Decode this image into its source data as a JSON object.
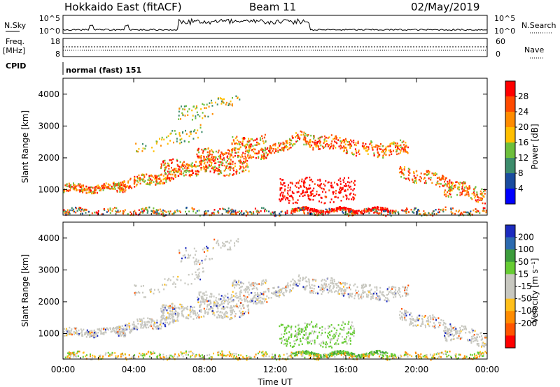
{
  "header": {
    "radar": "Hokkaido East (fitACF)",
    "beam": "Beam 11",
    "date": "02/May/2019"
  },
  "top_panels": {
    "nsky_label": "N.Sky",
    "nsky_ticks": [
      "10^5",
      "10^0"
    ],
    "nsearch_label": "N.Search",
    "nsearch_ticks": [
      "10^5",
      "10^0"
    ],
    "freq_label": "Freq.",
    "freq_unit": "[MHz]",
    "freq_ticks": [
      "18",
      "8"
    ],
    "nave_label": "Nave",
    "nave_ticks": [
      "60",
      "0"
    ],
    "cpid_label": "CPID",
    "cpid_value": "normal (fast) 151"
  },
  "chart_data": [
    {
      "type": "heatmap",
      "name": "power",
      "ylabel": "Slant Range [km]",
      "ylim": [
        200,
        4500
      ],
      "yticks": [
        "1000",
        "2000",
        "3000",
        "4000"
      ],
      "xlim": [
        0,
        24
      ],
      "colorbar": {
        "label": "Power [dB]",
        "ticks": [
          "28",
          "24",
          "20",
          "16",
          "12",
          "8",
          "4"
        ],
        "colors": [
          "#ff0000",
          "#ff4a00",
          "#ff8c00",
          "#ffbf00",
          "#6dbf3c",
          "#3c8c6c",
          "#1a4c9f",
          "#0000ff"
        ]
      }
    },
    {
      "type": "heatmap",
      "name": "velocity",
      "ylabel": "Slant Range [km]",
      "ylim": [
        200,
        4500
      ],
      "yticks": [
        "1000",
        "2000",
        "3000",
        "4000"
      ],
      "xlim": [
        0,
        24
      ],
      "colorbar": {
        "label": "Velocity [m s⁻¹]",
        "ticks": [
          "200",
          "100",
          "50",
          "15",
          "-15",
          "-50",
          "-100",
          "-200"
        ],
        "colors": [
          "#1c2bbf",
          "#2b6aaf",
          "#3c9c3c",
          "#66cc33",
          "#c8c8c0",
          "#c8c8c0",
          "#ffbf1a",
          "#ff8c00",
          "#ff5500",
          "#ff0000"
        ]
      }
    }
  ],
  "x_axis": {
    "ticks": [
      "00:00",
      "04:00",
      "08:00",
      "12:00",
      "16:00",
      "20:00",
      "00:00"
    ],
    "label": "Time UT"
  }
}
